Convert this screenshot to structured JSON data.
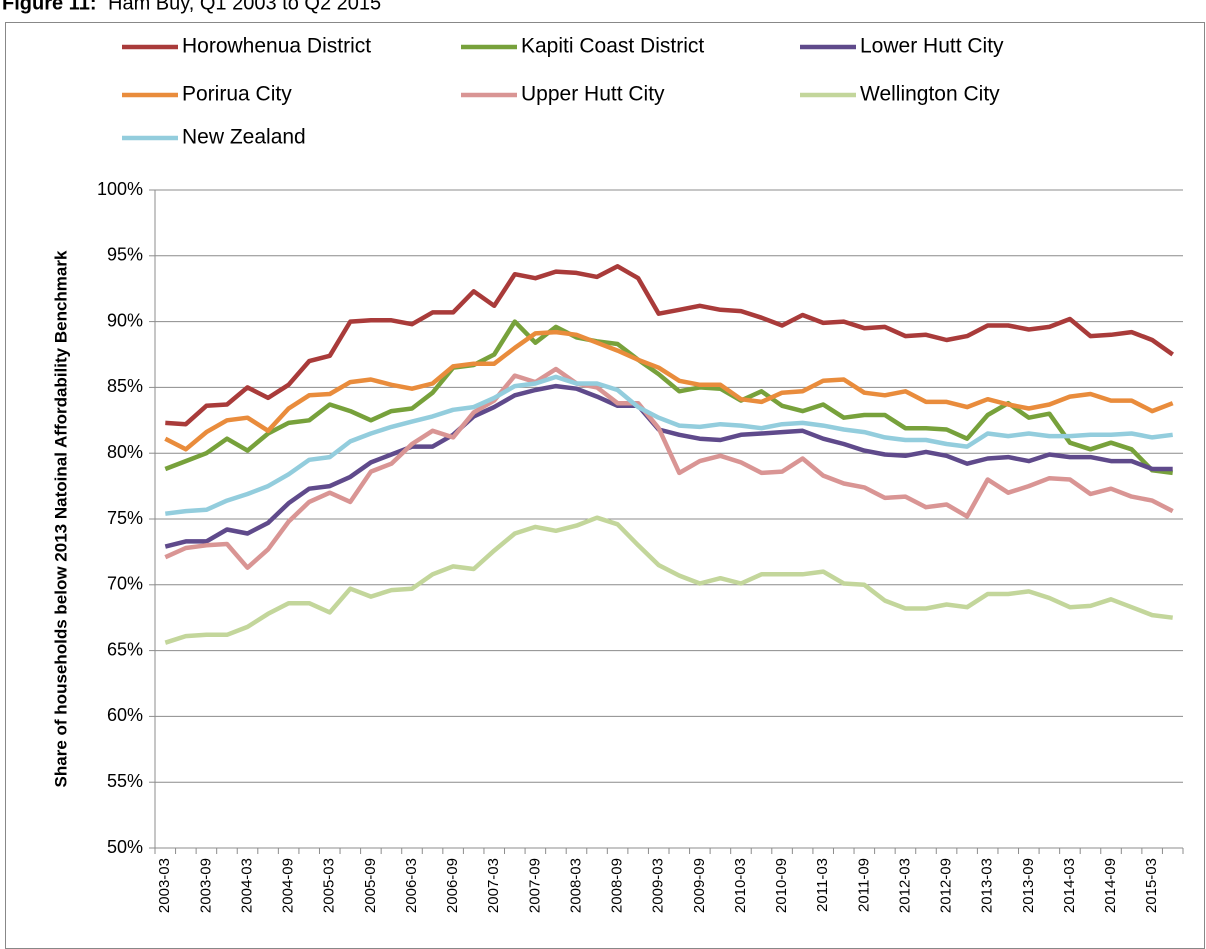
{
  "chart_data": {
    "type": "line",
    "figure_label": "Figure 11:",
    "title": "Ham Buy, Q1 2003 to Q2 2015",
    "y_label": "Share of households below 2013 Natoinal Affordability Benchmark",
    "categories": [
      "2003-03",
      null,
      "2003-09",
      null,
      "2004-03",
      null,
      "2004-09",
      null,
      "2005-03",
      null,
      "2005-09",
      null,
      "2006-03",
      null,
      "2006-09",
      null,
      "2007-03",
      null,
      "2007-09",
      null,
      "2008-03",
      null,
      "2008-09",
      null,
      "2009-03",
      null,
      "2009-09",
      null,
      "2010-03",
      null,
      "2010-09",
      null,
      "2011-03",
      null,
      "2011-09",
      null,
      "2012-03",
      null,
      "2012-09",
      null,
      "2013-03",
      null,
      "2013-09",
      null,
      "2014-03",
      null,
      "2014-09",
      null,
      "2015-03",
      null
    ],
    "series": [
      {
        "name": "Horowhenua District",
        "color": "#a93b3a",
        "values": [
          82.3,
          82.2,
          83.6,
          83.7,
          85.0,
          84.2,
          85.2,
          87.0,
          87.4,
          90.0,
          90.1,
          90.1,
          89.8,
          90.7,
          90.7,
          92.3,
          91.2,
          93.6,
          93.3,
          93.8,
          93.7,
          93.4,
          94.2,
          93.3,
          90.6,
          90.9,
          91.2,
          90.9,
          90.8,
          90.3,
          89.7,
          90.5,
          89.9,
          90.0,
          89.5,
          89.6,
          88.9,
          89.0,
          88.6,
          88.9,
          89.7,
          89.7,
          89.4,
          89.6,
          90.2,
          88.9,
          89.0,
          89.2,
          88.6,
          87.5
        ]
      },
      {
        "name": "Kapiti Coast District",
        "color": "#77a13b",
        "values": [
          78.8,
          79.4,
          80.0,
          81.1,
          80.2,
          81.5,
          82.3,
          82.5,
          83.7,
          83.2,
          82.5,
          83.2,
          83.4,
          84.6,
          86.5,
          86.7,
          87.5,
          90.0,
          88.4,
          89.6,
          88.8,
          88.5,
          88.3,
          87.1,
          86.0,
          84.7,
          85.0,
          84.9,
          84.0,
          84.7,
          83.6,
          83.2,
          83.7,
          82.7,
          82.9,
          82.9,
          81.9,
          81.9,
          81.8,
          81.1,
          82.9,
          83.8,
          82.7,
          83.0,
          80.8,
          80.3,
          80.8,
          80.3,
          78.7,
          78.5
        ]
      },
      {
        "name": "Lower Hutt City",
        "color": "#5f4a8b",
        "values": [
          72.9,
          73.3,
          73.3,
          74.2,
          73.9,
          74.7,
          76.2,
          77.3,
          77.5,
          78.2,
          79.3,
          79.9,
          80.5,
          80.5,
          81.4,
          82.8,
          83.5,
          84.4,
          84.8,
          85.1,
          84.9,
          84.3,
          83.6,
          83.6,
          81.8,
          81.4,
          81.1,
          81.0,
          81.4,
          81.5,
          81.6,
          81.7,
          81.1,
          80.7,
          80.2,
          79.9,
          79.8,
          80.1,
          79.8,
          79.2,
          79.6,
          79.7,
          79.4,
          79.9,
          79.7,
          79.7,
          79.4,
          79.4,
          78.8,
          78.8
        ]
      },
      {
        "name": "Porirua City",
        "color": "#e98c3c",
        "values": [
          81.1,
          80.3,
          81.6,
          82.5,
          82.7,
          81.7,
          83.4,
          84.4,
          84.5,
          85.4,
          85.6,
          85.2,
          84.9,
          85.3,
          86.6,
          86.8,
          86.8,
          88.0,
          89.1,
          89.2,
          89.0,
          88.4,
          87.8,
          87.1,
          86.5,
          85.5,
          85.2,
          85.2,
          84.1,
          83.9,
          84.6,
          84.7,
          85.5,
          85.6,
          84.6,
          84.4,
          84.7,
          83.9,
          83.9,
          83.5,
          84.1,
          83.7,
          83.4,
          83.7,
          84.3,
          84.5,
          84.0,
          84.0,
          83.2,
          83.8
        ]
      },
      {
        "name": "Upper Hutt City",
        "color": "#d99594",
        "values": [
          72.1,
          72.8,
          73.0,
          73.1,
          71.3,
          72.7,
          74.8,
          76.3,
          77.0,
          76.3,
          78.6,
          79.2,
          80.7,
          81.7,
          81.2,
          83.1,
          84.0,
          85.9,
          85.4,
          86.4,
          85.3,
          85.0,
          83.8,
          83.8,
          81.9,
          78.5,
          79.4,
          79.8,
          79.3,
          78.5,
          78.6,
          79.6,
          78.3,
          77.7,
          77.4,
          76.6,
          76.7,
          75.9,
          76.1,
          75.2,
          78.0,
          77.0,
          77.5,
          78.1,
          78.0,
          76.9,
          77.3,
          76.7,
          76.4,
          75.6
        ]
      },
      {
        "name": "Wellington City",
        "color": "#c3d69b",
        "values": [
          65.6,
          66.1,
          66.2,
          66.2,
          66.8,
          67.8,
          68.6,
          68.6,
          67.9,
          69.7,
          69.1,
          69.6,
          69.7,
          70.8,
          71.4,
          71.2,
          72.6,
          73.9,
          74.4,
          74.1,
          74.5,
          75.1,
          74.6,
          73.0,
          71.5,
          70.7,
          70.1,
          70.5,
          70.1,
          70.8,
          70.8,
          70.8,
          71.0,
          70.1,
          70.0,
          68.8,
          68.2,
          68.2,
          68.5,
          68.3,
          69.3,
          69.3,
          69.5,
          69.0,
          68.3,
          68.4,
          68.9,
          68.3,
          67.7,
          67.5
        ]
      },
      {
        "name": "New Zealand",
        "color": "#93cddd",
        "values": [
          75.4,
          75.6,
          75.7,
          76.4,
          76.9,
          77.5,
          78.4,
          79.5,
          79.7,
          80.9,
          81.5,
          82.0,
          82.4,
          82.8,
          83.3,
          83.5,
          84.2,
          85.1,
          85.3,
          85.8,
          85.3,
          85.3,
          84.8,
          83.5,
          82.7,
          82.1,
          82.0,
          82.2,
          82.1,
          81.9,
          82.2,
          82.3,
          82.1,
          81.8,
          81.6,
          81.2,
          81.0,
          81.0,
          80.7,
          80.5,
          81.5,
          81.3,
          81.5,
          81.3,
          81.3,
          81.4,
          81.4,
          81.5,
          81.2,
          81.4
        ]
      }
    ],
    "ylim": [
      50,
      100
    ],
    "yticks": [
      {
        "value": 50,
        "label": "50%"
      },
      {
        "value": 55,
        "label": "55%"
      },
      {
        "value": 60,
        "label": "60%"
      },
      {
        "value": 65,
        "label": "65%"
      },
      {
        "value": 70,
        "label": "70%"
      },
      {
        "value": 75,
        "label": "75%"
      },
      {
        "value": 80,
        "label": "80%"
      },
      {
        "value": 85,
        "label": "85%"
      },
      {
        "value": 90,
        "label": "90%"
      },
      {
        "value": 95,
        "label": "95%"
      },
      {
        "value": 100,
        "label": "100%"
      }
    ],
    "grid": true
  }
}
